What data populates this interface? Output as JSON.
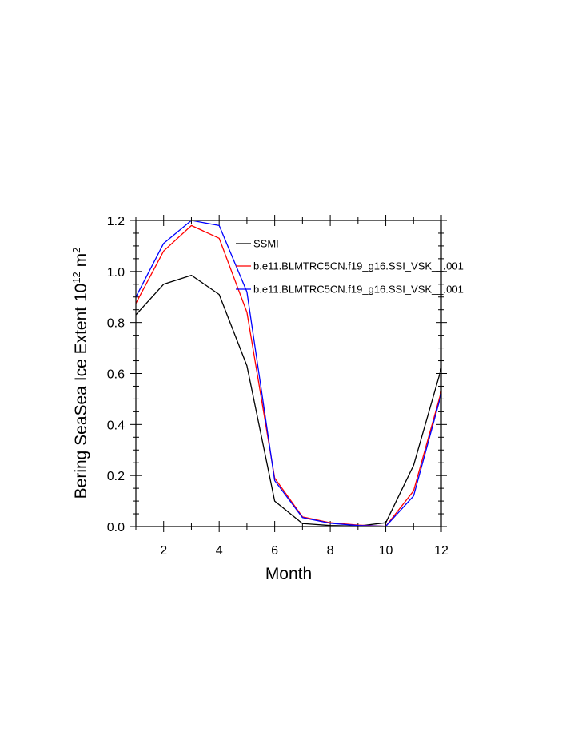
{
  "chart_data": {
    "type": "line",
    "xlabel": "Month",
    "ylabel_main": "Bering SeaSea Ice Extent 10",
    "ylabel_exp": "12",
    "ylabel_unit": " m",
    "ylabel_unit_exp": "2",
    "xlim": [
      1,
      12
    ],
    "ylim": [
      0,
      1.2
    ],
    "x_ticks": [
      2,
      4,
      6,
      8,
      10,
      12
    ],
    "y_ticks": [
      0.0,
      0.2,
      0.4,
      0.6,
      0.8,
      1.0,
      1.2
    ],
    "y_tick_labels": [
      "0.0",
      "0.2",
      "0.4",
      "0.6",
      "0.8",
      "1.0",
      "1.2"
    ],
    "x": [
      1,
      2,
      3,
      4,
      5,
      6,
      7,
      8,
      9,
      10,
      11,
      12
    ],
    "series": [
      {
        "name": "SSMI",
        "color": "#000000",
        "values": [
          0.83,
          0.95,
          0.985,
          0.91,
          0.63,
          0.1,
          0.012,
          0.004,
          0.002,
          0.015,
          0.24,
          0.62
        ]
      },
      {
        "name": "b.e11.BLMTRC5CN.f19_g16.SSI_VSK__.001",
        "color": "#ff0000",
        "values": [
          0.875,
          1.08,
          1.18,
          1.13,
          0.84,
          0.19,
          0.038,
          0.015,
          0.006,
          0.001,
          0.14,
          0.53
        ]
      },
      {
        "name": "b.e11.BLMTRC5CN.f19_g16.SSI_VSK__.001",
        "color": "#0000ff",
        "values": [
          0.9,
          1.11,
          1.2,
          1.18,
          0.92,
          0.18,
          0.035,
          0.013,
          0.004,
          0.001,
          0.12,
          0.52
        ]
      }
    ]
  }
}
